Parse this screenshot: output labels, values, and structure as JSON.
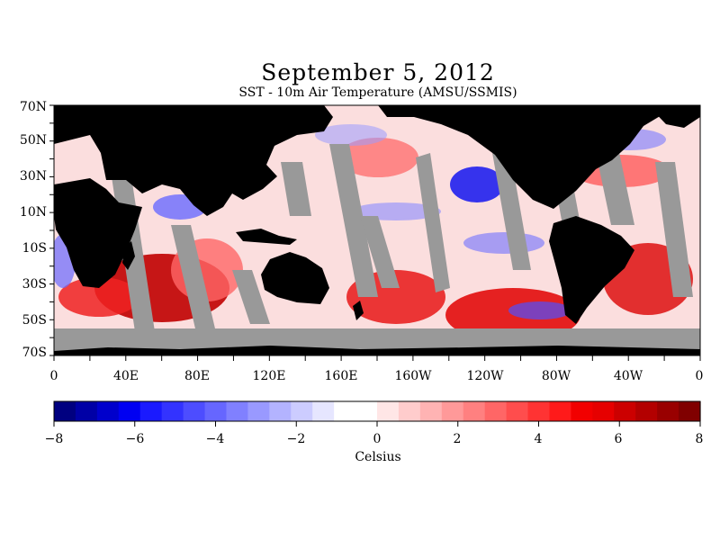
{
  "map": {
    "title": "September 5, 2012",
    "subtitle": "SST - 10m Air Temperature (AMSU/SSMIS)",
    "lat_labels": [
      "70N",
      "50N",
      "30N",
      "10N",
      "10S",
      "30S",
      "50S",
      "70S"
    ],
    "lon_labels": [
      "0",
      "40E",
      "80E",
      "120E",
      "160E",
      "160W",
      "120W",
      "80W",
      "40W",
      "0"
    ],
    "colors": {
      "land": "#000000",
      "no_data": "#999999",
      "frame": "#000000"
    }
  },
  "colorbar": {
    "label": "Celsius",
    "range": [
      -8,
      8
    ],
    "tick_labels": [
      "−8",
      "−6",
      "−4",
      "−2",
      "0",
      "2",
      "4",
      "6",
      "8"
    ],
    "colors": [
      "#000080",
      "#0000a6",
      "#0000cc",
      "#0000f2",
      "#1a1aff",
      "#3333ff",
      "#4d4dff",
      "#6666ff",
      "#8080ff",
      "#9999ff",
      "#b3b3ff",
      "#ccccff",
      "#e6e6ff",
      "#ffffff",
      "#ffffff",
      "#ffe6e6",
      "#ffcccc",
      "#ffb3b3",
      "#ff9999",
      "#ff8080",
      "#ff6666",
      "#ff4d4d",
      "#ff3333",
      "#ff1a1a",
      "#f20000",
      "#e60000",
      "#cc0000",
      "#b30000",
      "#990000",
      "#800000"
    ]
  }
}
